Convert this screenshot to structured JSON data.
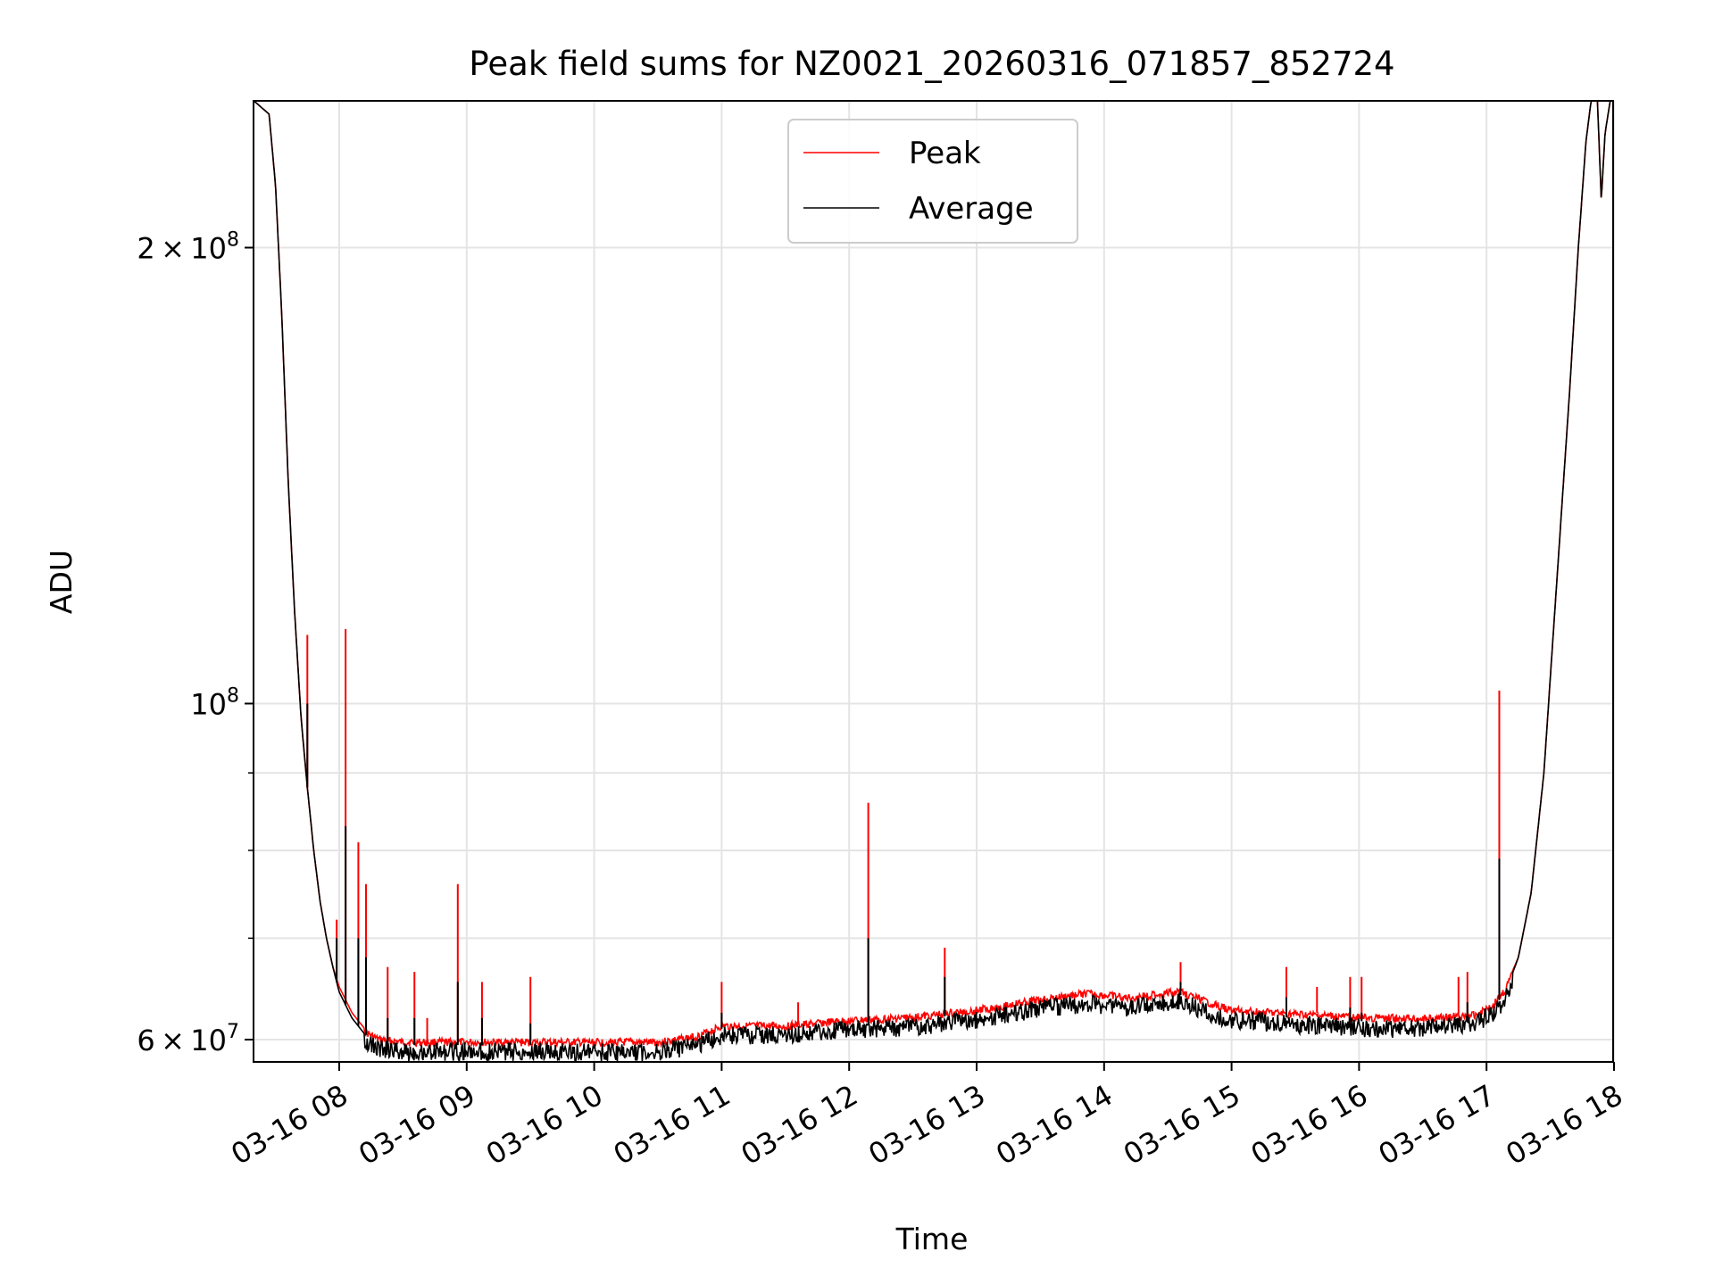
{
  "chart_data": {
    "type": "line",
    "title": "Peak field sums for NZ0021_20260316_071857_852724",
    "xlabel": "Time",
    "ylabel": "ADU",
    "yscale": "log",
    "ylim": [
      58000000,
      250000000
    ],
    "xlim_hours": [
      7.33,
      18.0
    ],
    "grid": true,
    "legend_position": "upper center",
    "x_ticks": [
      {
        "value": 8,
        "label": "03-16 08"
      },
      {
        "value": 9,
        "label": "03-16 09"
      },
      {
        "value": 10,
        "label": "03-16 10"
      },
      {
        "value": 11,
        "label": "03-16 11"
      },
      {
        "value": 12,
        "label": "03-16 12"
      },
      {
        "value": 13,
        "label": "03-16 13"
      },
      {
        "value": 14,
        "label": "03-16 14"
      },
      {
        "value": 15,
        "label": "03-16 15"
      },
      {
        "value": 16,
        "label": "03-16 16"
      },
      {
        "value": 17,
        "label": "03-16 17"
      },
      {
        "value": 18,
        "label": "03-16 18"
      }
    ],
    "y_major_ticks": [
      {
        "value": 60000000,
        "mant": "6",
        "exp": "7"
      },
      {
        "value": 100000000,
        "mant": "",
        "exp": "8"
      },
      {
        "value": 200000000,
        "mant": "2",
        "exp": "8"
      }
    ],
    "y_minor_ticks": [
      70000000,
      80000000,
      90000000
    ],
    "series": [
      {
        "name": "Peak",
        "color": "#ff0000",
        "baseline": [
          [
            7.33,
            250000000
          ],
          [
            7.45,
            245000000
          ],
          [
            7.5,
            220000000
          ],
          [
            7.55,
            180000000
          ],
          [
            7.6,
            140000000
          ],
          [
            7.65,
            115000000
          ],
          [
            7.7,
            98000000
          ],
          [
            7.75,
            88000000
          ],
          [
            7.8,
            80000000
          ],
          [
            7.85,
            74000000
          ],
          [
            7.9,
            70000000
          ],
          [
            7.95,
            67000000
          ],
          [
            8.0,
            65000000
          ],
          [
            8.1,
            62500000
          ],
          [
            8.2,
            61000000
          ],
          [
            8.3,
            60300000
          ],
          [
            8.5,
            60000000
          ],
          [
            9.0,
            60000000
          ],
          [
            9.5,
            60000000
          ],
          [
            10.0,
            60000000
          ],
          [
            10.5,
            60000000
          ],
          [
            10.8,
            60500000
          ],
          [
            11.0,
            61500000
          ],
          [
            11.5,
            61500000
          ],
          [
            12.0,
            62000000
          ],
          [
            12.5,
            62300000
          ],
          [
            13.0,
            63000000
          ],
          [
            13.5,
            64000000
          ],
          [
            13.85,
            64600000
          ],
          [
            14.2,
            64200000
          ],
          [
            14.6,
            64800000
          ],
          [
            14.8,
            63800000
          ],
          [
            15.0,
            63000000
          ],
          [
            15.5,
            62600000
          ],
          [
            16.0,
            62300000
          ],
          [
            16.5,
            62200000
          ],
          [
            16.9,
            62500000
          ],
          [
            17.05,
            63500000
          ],
          [
            17.15,
            65000000
          ],
          [
            17.25,
            68000000
          ],
          [
            17.35,
            75000000
          ],
          [
            17.45,
            90000000
          ],
          [
            17.55,
            120000000
          ],
          [
            17.65,
            160000000
          ],
          [
            17.72,
            200000000
          ],
          [
            17.78,
            235000000
          ],
          [
            17.82,
            250000000
          ],
          [
            17.87,
            250000000
          ],
          [
            17.9,
            215000000
          ],
          [
            17.93,
            238000000
          ],
          [
            17.97,
            250000000
          ],
          [
            18.0,
            250000000
          ]
        ],
        "spikes": [
          [
            7.75,
            111000000
          ],
          [
            7.98,
            72000000
          ],
          [
            8.05,
            112000000
          ],
          [
            8.15,
            81000000
          ],
          [
            8.21,
            76000000
          ],
          [
            8.38,
            67000000
          ],
          [
            8.59,
            66500000
          ],
          [
            8.69,
            62000000
          ],
          [
            8.93,
            76000000
          ],
          [
            9.12,
            65500000
          ],
          [
            9.5,
            66000000
          ],
          [
            11.0,
            65500000
          ],
          [
            11.6,
            63500000
          ],
          [
            12.15,
            86000000
          ],
          [
            12.75,
            69000000
          ],
          [
            14.6,
            67500000
          ],
          [
            15.43,
            67000000
          ],
          [
            15.67,
            65000000
          ],
          [
            15.93,
            66000000
          ],
          [
            16.02,
            66000000
          ],
          [
            16.78,
            66000000
          ],
          [
            16.85,
            66500000
          ],
          [
            17.1,
            102000000
          ]
        ]
      },
      {
        "name": "Average",
        "color": "#000000",
        "baseline": [
          [
            7.33,
            250000000
          ],
          [
            7.45,
            245000000
          ],
          [
            7.5,
            220000000
          ],
          [
            7.55,
            180000000
          ],
          [
            7.6,
            140000000
          ],
          [
            7.65,
            115000000
          ],
          [
            7.7,
            98000000
          ],
          [
            7.75,
            88000000
          ],
          [
            7.8,
            80000000
          ],
          [
            7.85,
            74000000
          ],
          [
            7.9,
            70000000
          ],
          [
            7.95,
            67000000
          ],
          [
            8.0,
            64500000
          ],
          [
            8.1,
            62000000
          ],
          [
            8.2,
            60500000
          ],
          [
            8.3,
            59800000
          ],
          [
            8.5,
            59500000
          ],
          [
            9.0,
            59500000
          ],
          [
            9.5,
            59500000
          ],
          [
            10.0,
            59400000
          ],
          [
            10.5,
            59500000
          ],
          [
            10.8,
            60000000
          ],
          [
            11.0,
            61000000
          ],
          [
            11.5,
            61000000
          ],
          [
            12.0,
            61500000
          ],
          [
            12.5,
            61800000
          ],
          [
            13.0,
            62500000
          ],
          [
            13.5,
            63500000
          ],
          [
            13.85,
            64000000
          ],
          [
            14.2,
            63600000
          ],
          [
            14.6,
            64200000
          ],
          [
            14.8,
            63200000
          ],
          [
            15.0,
            62500000
          ],
          [
            15.5,
            62000000
          ],
          [
            16.0,
            61700000
          ],
          [
            16.5,
            61600000
          ],
          [
            16.9,
            62000000
          ],
          [
            17.05,
            63000000
          ],
          [
            17.15,
            64500000
          ],
          [
            17.25,
            68000000
          ],
          [
            17.35,
            75000000
          ],
          [
            17.45,
            90000000
          ],
          [
            17.55,
            120000000
          ],
          [
            17.65,
            160000000
          ],
          [
            17.72,
            200000000
          ],
          [
            17.78,
            235000000
          ],
          [
            17.82,
            250000000
          ],
          [
            17.87,
            250000000
          ],
          [
            17.9,
            215000000
          ],
          [
            17.93,
            238000000
          ],
          [
            17.97,
            250000000
          ],
          [
            18.0,
            250000000
          ]
        ],
        "spikes": [
          [
            7.75,
            100000000
          ],
          [
            7.98,
            70000000
          ],
          [
            8.05,
            83000000
          ],
          [
            8.15,
            70000000
          ],
          [
            8.21,
            68000000
          ],
          [
            8.38,
            62000000
          ],
          [
            8.59,
            62000000
          ],
          [
            8.93,
            65500000
          ],
          [
            9.12,
            62000000
          ],
          [
            9.5,
            61500000
          ],
          [
            11.0,
            62500000
          ],
          [
            12.15,
            70000000
          ],
          [
            12.75,
            66000000
          ],
          [
            14.6,
            65500000
          ],
          [
            15.43,
            64000000
          ],
          [
            15.93,
            63000000
          ],
          [
            16.02,
            62500000
          ],
          [
            16.85,
            63500000
          ],
          [
            17.1,
            79000000
          ]
        ]
      }
    ]
  }
}
